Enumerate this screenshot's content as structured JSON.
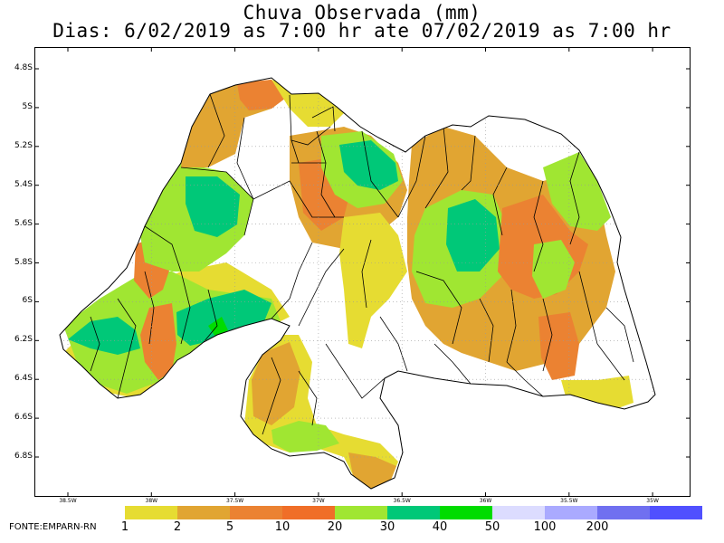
{
  "title": {
    "line1": "Chuva Observada (mm)",
    "line2": "Dias: 6/02/2019 as 7:00 hr ate 07/02/2019 as 7:00 hr"
  },
  "axes": {
    "lat_labels": [
      "4.8S",
      "5S",
      "5.2S",
      "5.4S",
      "5.6S",
      "5.8S",
      "6S",
      "6.2S",
      "6.4S",
      "6.6S",
      "6.8S"
    ],
    "lat_values": [
      -4.8,
      -5.0,
      -5.2,
      -5.4,
      -5.6,
      -5.8,
      -6.0,
      -6.2,
      -6.4,
      -6.6,
      -6.8
    ],
    "lon_labels": [
      "38.5W",
      "38W",
      "37.5W",
      "37W",
      "36.5W",
      "36W",
      "35.5W",
      "35W"
    ],
    "lon_values": [
      -38.5,
      -38.0,
      -37.5,
      -37.0,
      -36.5,
      -36.0,
      -35.5,
      -35.0
    ],
    "lat_range": [
      -7.0,
      -4.7
    ],
    "lon_range": [
      -38.8,
      -34.8
    ],
    "grid": true
  },
  "legend": {
    "values": [
      "1",
      "2",
      "5",
      "10",
      "20",
      "30",
      "40",
      "50",
      "100",
      "200"
    ],
    "colors": [
      "#e6dc32",
      "#e1a532",
      "#eb8232",
      "#f06e28",
      "#a0e632",
      "#00c878",
      "#00dc00",
      "#dcdcff",
      "#aaaaff",
      "#7070f0",
      "#5050ff"
    ]
  },
  "source": "FONTE:EMPARN-RN"
}
